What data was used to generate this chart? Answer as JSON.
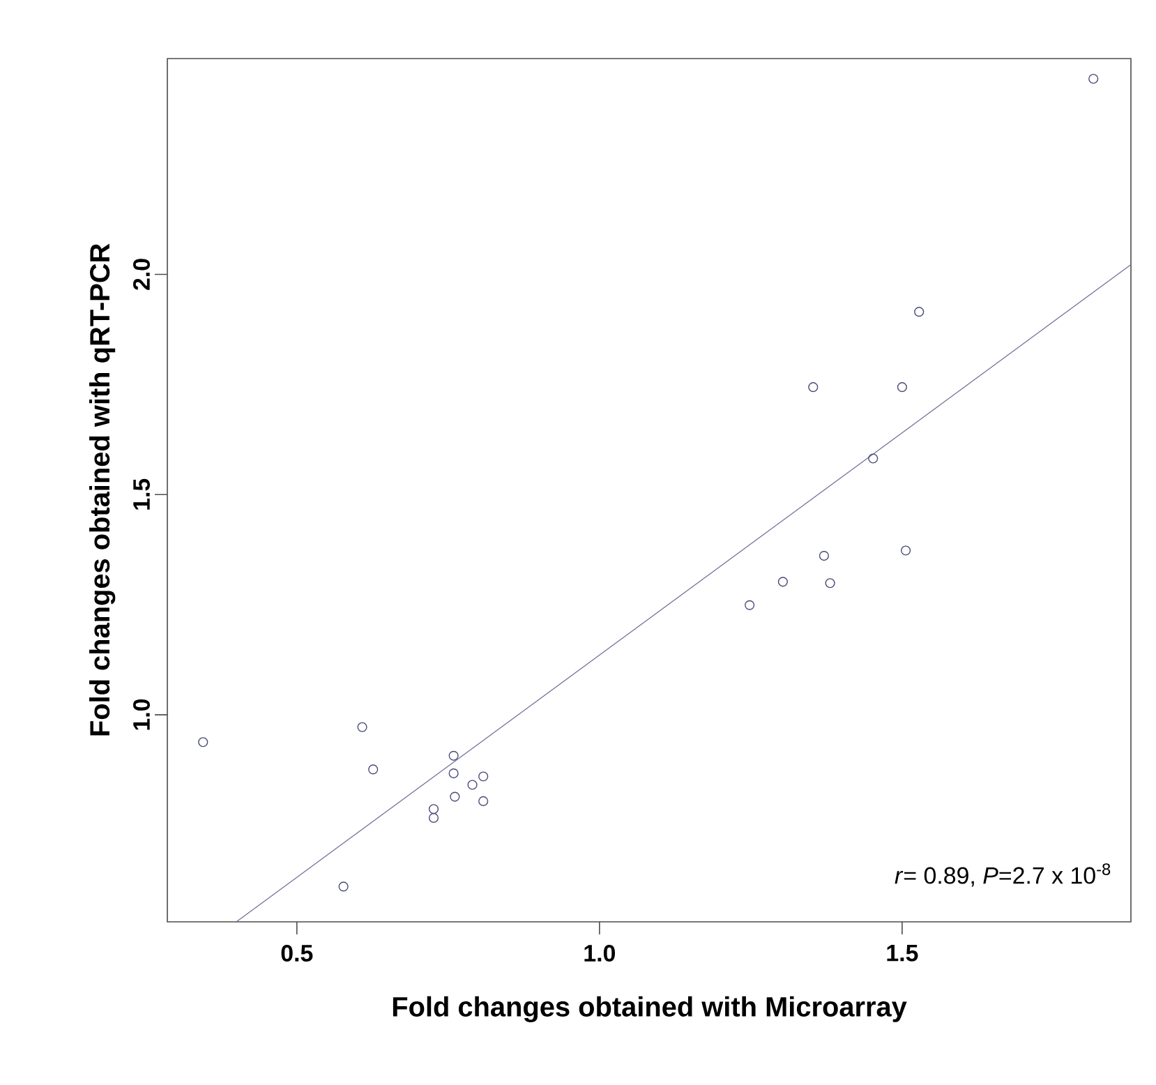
{
  "chart_data": {
    "type": "scatter",
    "xlabel": "Fold changes obtained with Microarray",
    "ylabel": "Fold changes obtained with qRT-PCR",
    "annotations": [
      "*r*= 0.89, *P*=2.7 x 10$^{-8}$"
    ],
    "xlim": [
      0.286,
      1.878
    ],
    "ylim": [
      0.53,
      2.49
    ],
    "xticks": [
      {
        "value": 0.5,
        "label": "0.5"
      },
      {
        "value": 1.0,
        "label": "1.0"
      },
      {
        "value": 1.5,
        "label": "1.5"
      }
    ],
    "yticks": [
      {
        "value": 1.0,
        "label": "1.0"
      },
      {
        "value": 1.5,
        "label": "1.5"
      },
      {
        "value": 2.0,
        "label": "2.0"
      }
    ],
    "marker": "circle",
    "series": [
      {
        "color": "#4a4a7a",
        "x": [
          1.816,
          1.528,
          1.353,
          1.5,
          1.452,
          0.345,
          0.608,
          0.626,
          0.759,
          0.759,
          0.761,
          0.79,
          0.808,
          0.808,
          0.726,
          0.726,
          0.577,
          1.248,
          1.303,
          1.371,
          1.381,
          1.506
        ],
        "values": [
          2.444,
          1.915,
          1.744,
          1.744,
          1.582,
          0.938,
          0.972,
          0.876,
          0.907,
          0.867,
          0.814,
          0.841,
          0.86,
          0.804,
          0.786,
          0.766,
          0.61,
          1.249,
          1.302,
          1.361,
          1.299,
          1.373
        ]
      },
      {
        "type": "line",
        "marker": "none",
        "color": "#6a6a9a",
        "x": [
          0.4,
          1.878
        ],
        "values": [
          0.53,
          2.022
        ]
      }
    ]
  }
}
